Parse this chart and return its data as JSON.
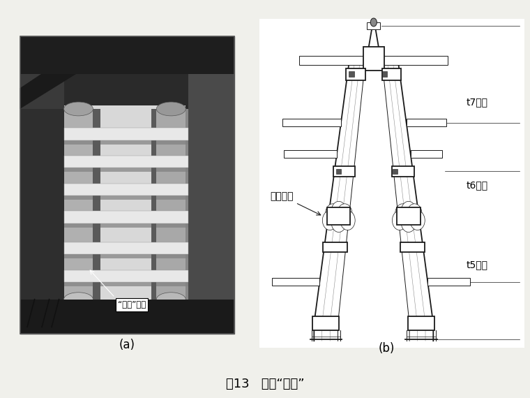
{
  "figure_title": "图13   预留“活节”",
  "label_a": "(a)",
  "label_b": "(b)",
  "bg_color": "#f0f0eb",
  "annotation_left": "“活节”预留",
  "annotation_right": "预留活节",
  "label_t7": "t7节柱",
  "label_t6": "t6节柱",
  "label_t5": "t5节柱",
  "col_draw": "#1a1a1a",
  "lw_main": 1.3,
  "lw_thin": 0.7,
  "lw_hair": 0.5
}
